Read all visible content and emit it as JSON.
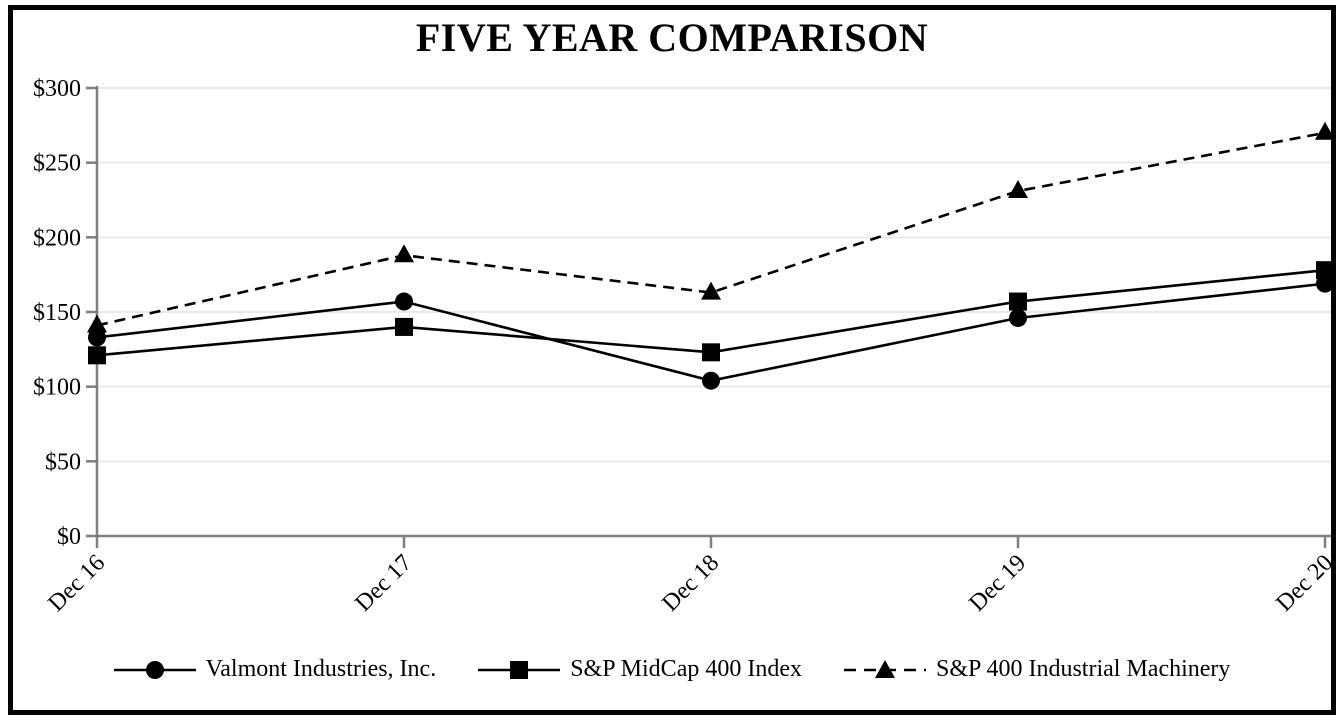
{
  "chart_data": {
    "type": "line",
    "title": "FIVE YEAR COMPARISON",
    "xlabel": "",
    "ylabel": "",
    "categories": [
      "Dec 16",
      "Dec 17",
      "Dec 18",
      "Dec 19",
      "Dec 20"
    ],
    "series": [
      {
        "name": "Valmont Industries, Inc.",
        "marker": "circle",
        "line": "solid",
        "values": [
          133,
          157,
          104,
          146,
          169
        ]
      },
      {
        "name": "S&P MidCap 400 Index",
        "marker": "square",
        "line": "solid",
        "values": [
          121,
          140,
          123,
          157,
          178
        ]
      },
      {
        "name": "S&P 400 Industrial Machinery",
        "marker": "triangle",
        "line": "dashed",
        "values": [
          141,
          188,
          163,
          231,
          270
        ]
      }
    ],
    "ylim": [
      0,
      300
    ],
    "yticks": [
      0,
      50,
      100,
      150,
      200,
      250,
      300
    ],
    "ytick_labels": [
      "$0",
      "$50",
      "$100",
      "$150",
      "$200",
      "$250",
      "$300"
    ],
    "grid": true,
    "legend_position": "bottom",
    "x_label_rotation_deg": -45,
    "colors": {
      "series": "#000000",
      "axis": "#7f7f7f",
      "gridline": "#e9e9e9",
      "background": "#ffffff",
      "frame_border": "#000000",
      "text": "#000000"
    }
  }
}
